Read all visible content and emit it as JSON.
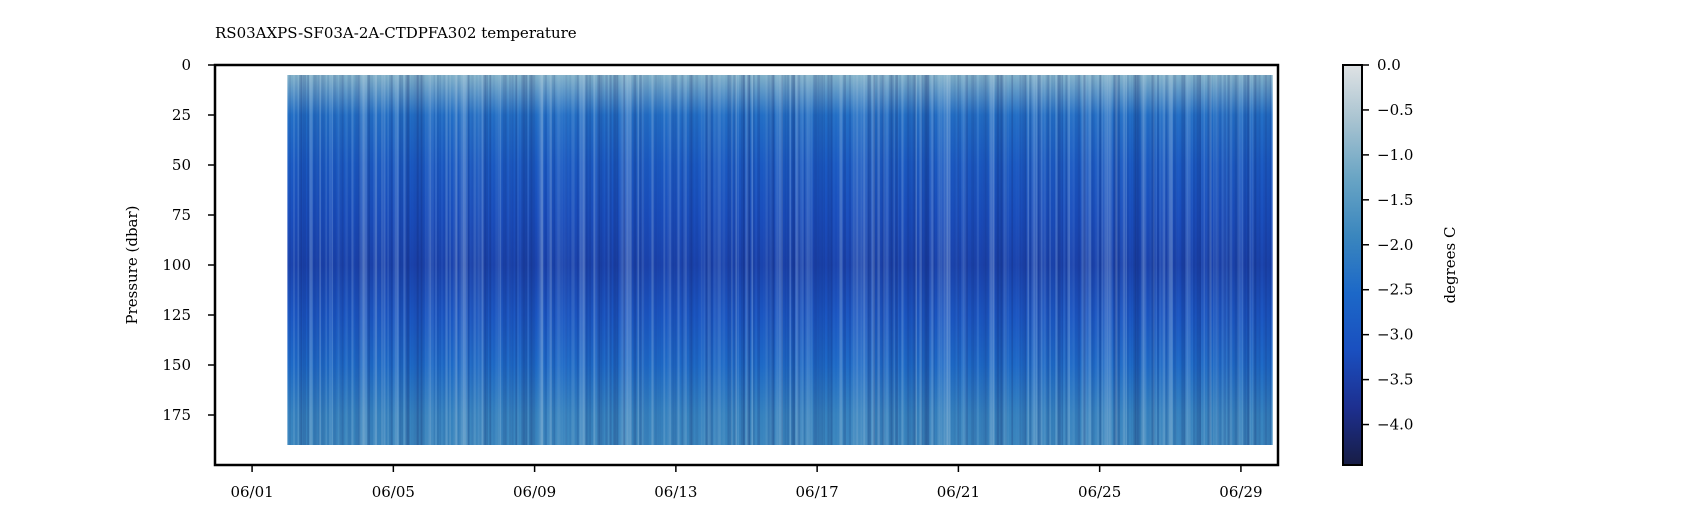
{
  "chart_data": {
    "type": "heatmap",
    "title": "RS03AXPS-SF03A-2A-CTDPFA302 temperature",
    "xlabel": "",
    "ylabel": "Pressure (dbar)",
    "x_tick_labels": [
      "06/01",
      "06/05",
      "06/09",
      "06/13",
      "06/17",
      "06/21",
      "06/25",
      "06/29"
    ],
    "x_tick_days": [
      1,
      5,
      9,
      13,
      17,
      21,
      25,
      29
    ],
    "xlim_days": [
      -0.05,
      30.05
    ],
    "y_ticks": [
      0,
      25,
      50,
      75,
      100,
      125,
      150,
      175
    ],
    "ylim": [
      200,
      0
    ],
    "data_extent": {
      "x_days": [
        2.0,
        29.9
      ],
      "y_dbar": [
        5,
        190
      ]
    },
    "colorbar": {
      "label": "degrees C",
      "ticks": [
        0.0,
        -0.5,
        -1.0,
        -1.5,
        -2.0,
        -2.5,
        -3.0,
        -3.5,
        -4.0
      ],
      "tick_labels": [
        "0.0",
        "−0.5",
        "−1.0",
        "−1.5",
        "−2.0",
        "−2.5",
        "−3.0",
        "−3.5",
        "−4.0"
      ],
      "range": [
        -4.45,
        0.0
      ],
      "colors": [
        "#171d45",
        "#1d2f8f",
        "#1a4fbf",
        "#1c68c8",
        "#3a86be",
        "#68a4c4",
        "#a6c2d0",
        "#dfe2e4"
      ]
    },
    "depth_profile": [
      {
        "pressure": 5,
        "temperature": -1.0
      },
      {
        "pressure": 25,
        "temperature": -2.4
      },
      {
        "pressure": 50,
        "temperature": -2.9
      },
      {
        "pressure": 75,
        "temperature": -3.2
      },
      {
        "pressure": 100,
        "temperature": -3.4
      },
      {
        "pressure": 125,
        "temperature": -3.0
      },
      {
        "pressure": 150,
        "temperature": -2.5
      },
      {
        "pressure": 175,
        "temperature": -2.0
      },
      {
        "pressure": 190,
        "temperature": -1.9
      }
    ]
  }
}
